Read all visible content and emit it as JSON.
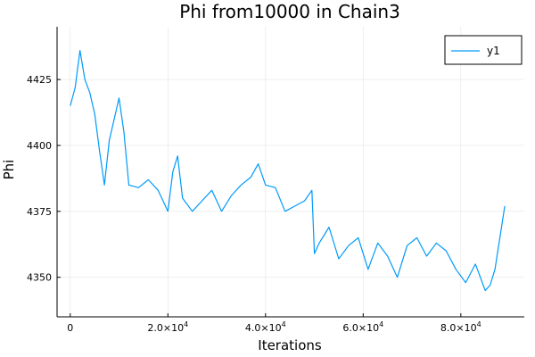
{
  "chart_data": {
    "type": "line",
    "title": "Phi from10000 in Chain3",
    "xlabel": "Iterations",
    "ylabel": "Phi",
    "xlim": [
      -2700,
      93000
    ],
    "ylim": [
      4335,
      4445
    ],
    "grid": true,
    "legend_position": "top-right",
    "x_ticks": [
      {
        "value": 0,
        "label": "0"
      },
      {
        "value": 20000,
        "label": "2.0×10^4"
      },
      {
        "value": 40000,
        "label": "4.0×10^4"
      },
      {
        "value": 60000,
        "label": "6.0×10^4"
      },
      {
        "value": 80000,
        "label": "8.0×10^4"
      }
    ],
    "y_ticks": [
      {
        "value": 4350,
        "label": "4350"
      },
      {
        "value": 4375,
        "label": "4375"
      },
      {
        "value": 4400,
        "label": "4400"
      },
      {
        "value": 4425,
        "label": "4425"
      }
    ],
    "series": [
      {
        "name": "y1",
        "color": "#009af9",
        "x": [
          0,
          1000,
          2000,
          3000,
          4000,
          5000,
          6000,
          7000,
          8000,
          9000,
          10000,
          11000,
          12000,
          14000,
          16000,
          18000,
          20000,
          21000,
          22000,
          23000,
          25000,
          27000,
          29000,
          31000,
          33000,
          35000,
          37000,
          38500,
          40000,
          42000,
          44000,
          46000,
          48000,
          49500,
          50000,
          51000,
          53000,
          55000,
          57000,
          59000,
          61000,
          63000,
          65000,
          67000,
          69000,
          71000,
          73000,
          75000,
          77000,
          79000,
          81000,
          83000,
          85000,
          86000,
          87000,
          88000,
          89000
        ],
        "y": [
          4415,
          4422,
          4436,
          4425,
          4420,
          4412,
          4398,
          4385,
          4402,
          4410,
          4418,
          4405,
          4385,
          4384,
          4387,
          4383,
          4375,
          4390,
          4396,
          4380,
          4375,
          4379,
          4383,
          4375,
          4381,
          4385,
          4388,
          4393,
          4385,
          4384,
          4375,
          4377,
          4379,
          4383,
          4359,
          4363,
          4369,
          4357,
          4362,
          4365,
          4353,
          4363,
          4358,
          4350,
          4362,
          4365,
          4358,
          4363,
          4360,
          4353,
          4348,
          4355,
          4345,
          4347,
          4353,
          4365,
          4377
        ]
      }
    ]
  }
}
